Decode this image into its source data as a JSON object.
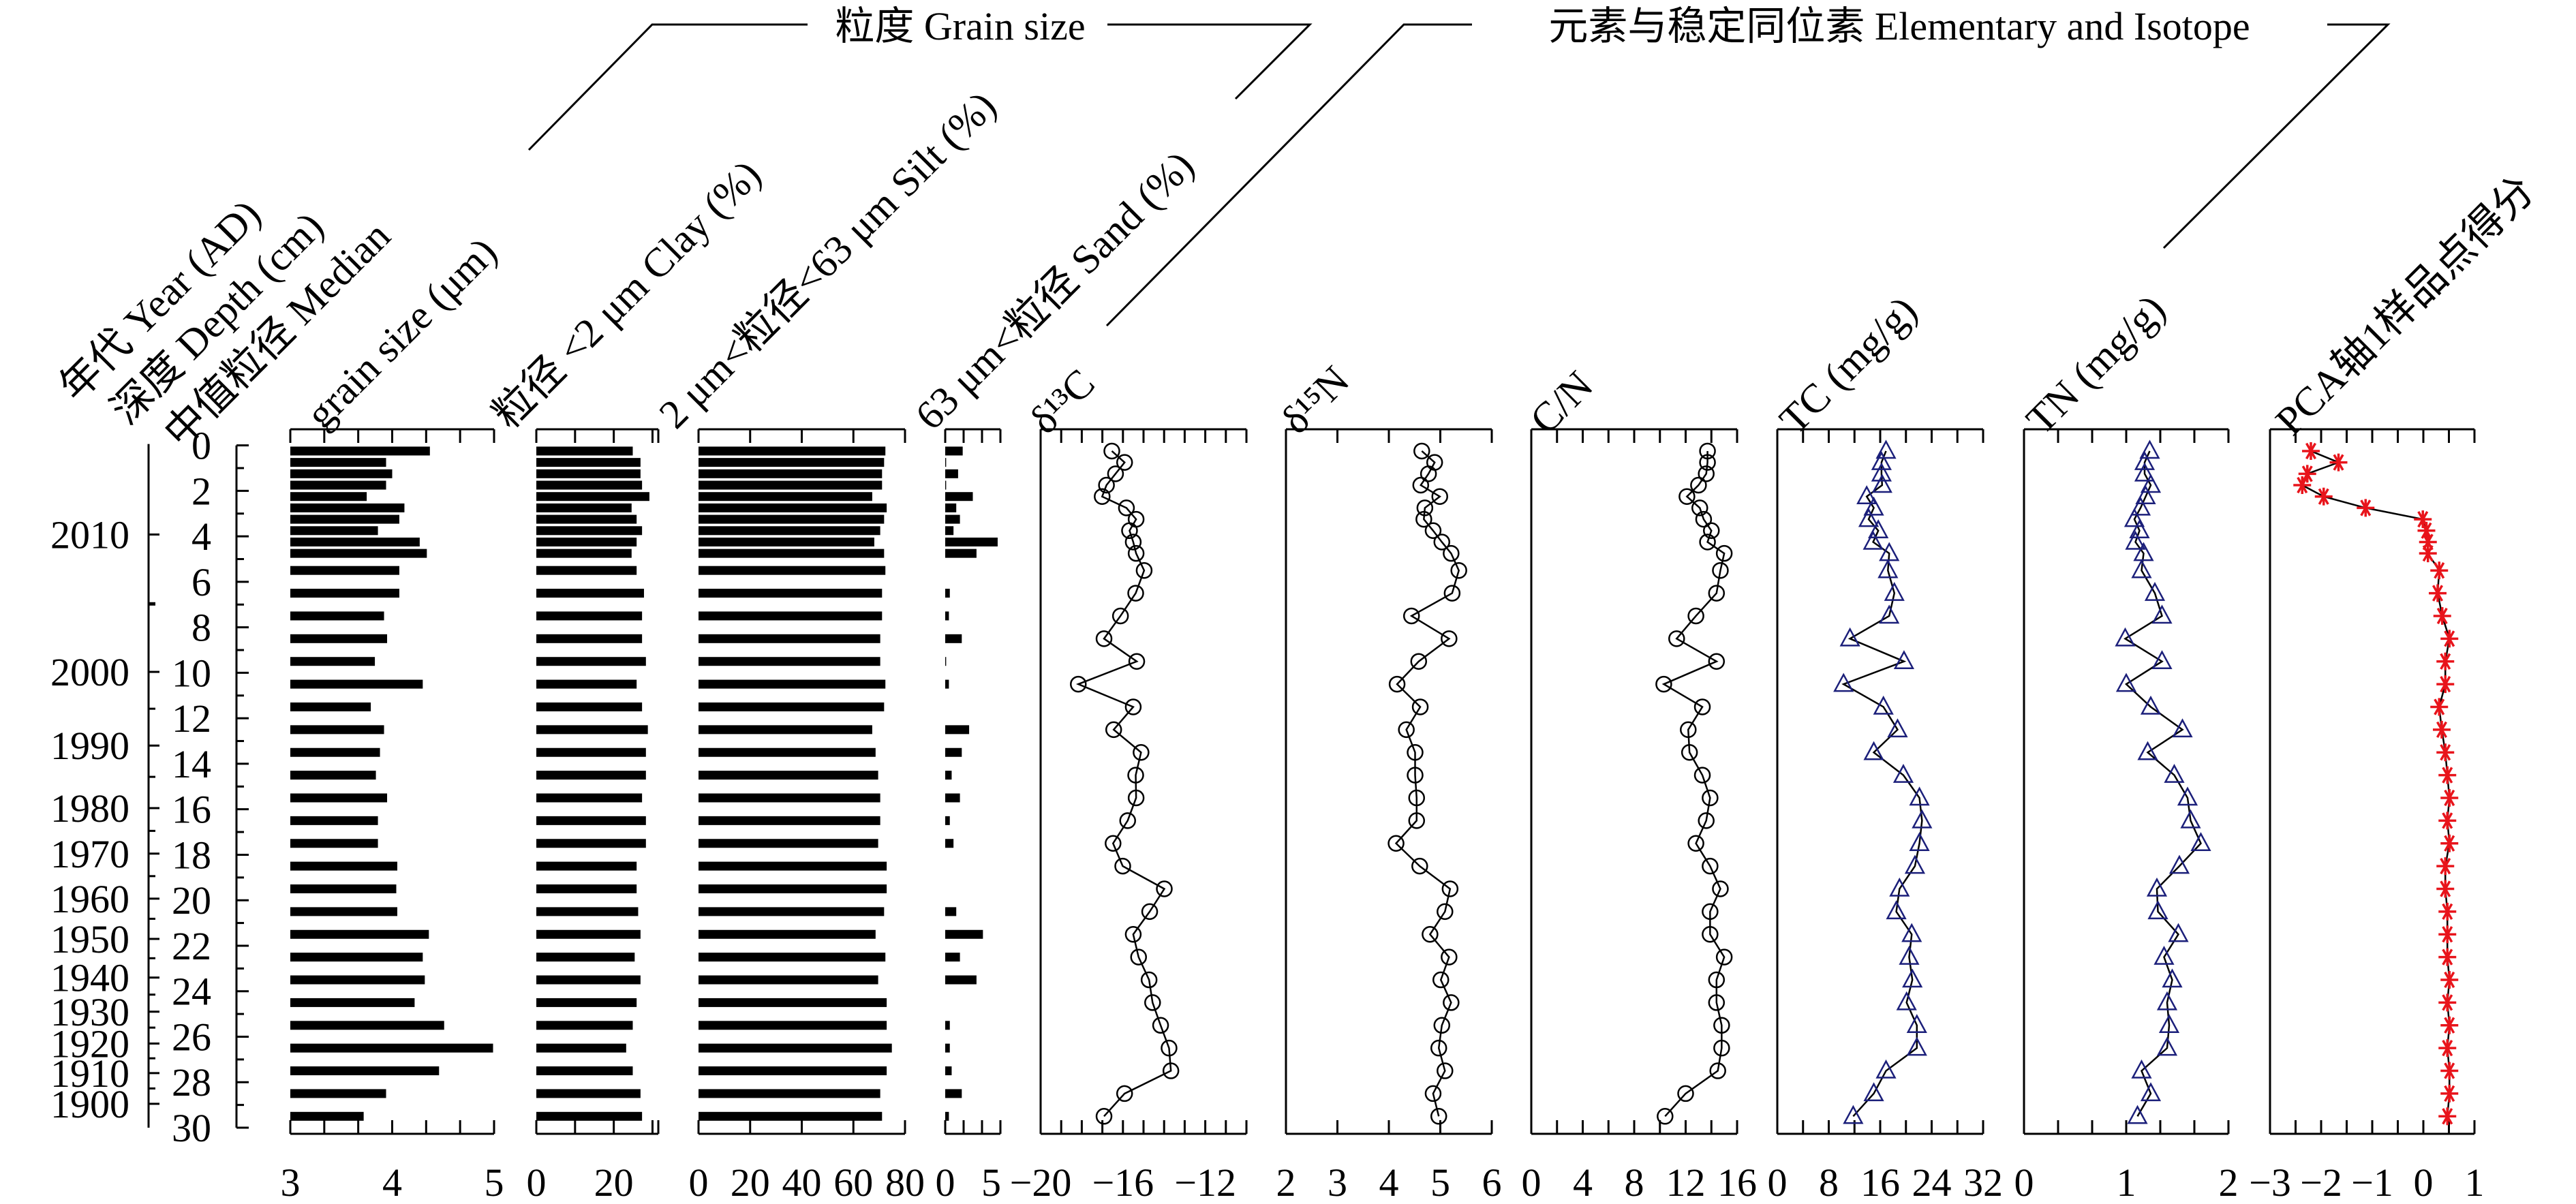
{
  "chart_data": {
    "type": "line",
    "title": "",
    "orientation": "vertical-depth-profile",
    "groups": [
      {
        "id": "grain",
        "label": "粒度 Grain size"
      },
      {
        "id": "elem",
        "label": "元素与稳定同位素 Elementary and Isotope"
      }
    ],
    "year_axis": {
      "label": "年代 Year (AD)",
      "ticks": [
        {
          "year": "2010",
          "depth": 3.92
        },
        {
          "year": "2000",
          "depth": 9.96
        },
        {
          "year": "1990",
          "depth": 13.2
        },
        {
          "year": "1980",
          "depth": 15.95
        },
        {
          "year": "1970",
          "depth": 17.95
        },
        {
          "year": "1960",
          "depth": 19.93
        },
        {
          "year": "1950",
          "depth": 21.7
        },
        {
          "year": "1940",
          "depth": 23.4
        },
        {
          "year": "1930",
          "depth": 24.9
        },
        {
          "year": "1920",
          "depth": 26.3
        },
        {
          "year": "1910",
          "depth": 27.6
        },
        {
          "year": "1900",
          "depth": 28.95
        }
      ]
    },
    "depth_axis": {
      "label": "深度 Depth (cm)",
      "ylim": [
        0,
        30
      ],
      "ticks": [
        "0",
        "2",
        "4",
        "6",
        "8",
        "10",
        "12",
        "14",
        "16",
        "18",
        "20",
        "22",
        "24",
        "26",
        "28",
        "30"
      ]
    },
    "depth_cm": [
      0.25,
      0.75,
      1.25,
      1.75,
      2.25,
      2.75,
      3.25,
      3.75,
      4.25,
      4.75,
      5.5,
      6.5,
      7.5,
      8.5,
      9.5,
      10.5,
      11.5,
      12.5,
      13.5,
      14.5,
      15.5,
      16.5,
      17.5,
      18.5,
      19.5,
      20.5,
      21.5,
      22.5,
      23.5,
      24.5,
      25.5,
      26.5,
      27.5,
      28.5,
      29.5
    ],
    "panels": [
      {
        "id": "median",
        "group": "grain",
        "type": "bar",
        "label": [
          "中值粒径 Median",
          "grain size (μm)"
        ],
        "xlim": [
          3,
          5
        ],
        "minor_step": 0.3333,
        "ticks": [
          {
            "v": 3,
            "t": "3"
          },
          {
            "v": 4,
            "t": "4"
          },
          {
            "v": 5,
            "t": "5"
          }
        ],
        "values": [
          4.37,
          3.94,
          4.0,
          3.94,
          3.75,
          4.12,
          4.07,
          3.86,
          4.27,
          4.34,
          4.07,
          4.07,
          3.92,
          3.95,
          3.83,
          4.3,
          3.79,
          3.92,
          3.88,
          3.84,
          3.95,
          3.86,
          3.86,
          4.05,
          4.04,
          4.05,
          4.36,
          4.3,
          4.32,
          4.22,
          4.51,
          4.99,
          4.46,
          3.94,
          3.72
        ]
      },
      {
        "id": "clay",
        "group": "grain",
        "type": "bar",
        "label": [
          "粒径 <2 μm Clay (%)"
        ],
        "xlim": [
          0,
          31.5
        ],
        "minor_step": 10,
        "ticks": [
          {
            "v": 0,
            "t": "0"
          },
          {
            "v": 20,
            "t": "20"
          }
        ],
        "values": [
          24.9,
          26.9,
          26.9,
          27.3,
          29.2,
          24.6,
          25.9,
          27.3,
          25.9,
          24.6,
          25.9,
          27.8,
          27.3,
          27.3,
          28.3,
          25.9,
          27.3,
          28.8,
          28.3,
          28.3,
          27.3,
          28.3,
          28.3,
          25.9,
          25.9,
          26.3,
          26.9,
          25.4,
          26.9,
          25.9,
          24.9,
          23.2,
          24.9,
          26.9,
          27.3
        ]
      },
      {
        "id": "silt",
        "group": "grain",
        "type": "bar",
        "label": [
          "2 μm<粒径<63 μm Silt (%)"
        ],
        "xlim": [
          0,
          80
        ],
        "minor_step": 20,
        "ticks": [
          {
            "v": 0,
            "t": "0"
          },
          {
            "v": 20,
            "t": "20"
          },
          {
            "v": 40,
            "t": "40"
          },
          {
            "v": 60,
            "t": "60"
          },
          {
            "v": 80,
            "t": "80"
          }
        ],
        "values": [
          72.4,
          71.9,
          71.1,
          71.1,
          67.3,
          72.9,
          71.9,
          70.4,
          68.1,
          71.9,
          72.4,
          71.1,
          71.1,
          70.4,
          70.4,
          72.4,
          71.9,
          67.3,
          68.6,
          69.6,
          70.4,
          70.4,
          69.6,
          72.9,
          72.9,
          71.9,
          68.6,
          72.4,
          69.6,
          72.9,
          72.9,
          74.9,
          72.9,
          70.4,
          71.1
        ]
      },
      {
        "id": "sand",
        "group": "grain",
        "type": "bar",
        "label": [
          "63 μm<粒径 Sand (%)"
        ],
        "xlim": [
          0,
          6
        ],
        "minor_step": 2,
        "ticks": [
          {
            "v": 0,
            "t": "0"
          },
          {
            "v": 5,
            "t": "5"
          }
        ],
        "values": [
          1.9,
          0.1,
          1.4,
          0.1,
          3.0,
          1.2,
          1.6,
          0.9,
          5.7,
          3.4,
          0,
          0.5,
          0.4,
          1.8,
          0.1,
          0.4,
          0,
          2.6,
          1.8,
          0.7,
          1.6,
          0.5,
          0.9,
          0,
          0,
          1.2,
          4.1,
          1.6,
          3.4,
          0,
          0.5,
          0.5,
          0.7,
          1.8,
          0.4
        ]
      },
      {
        "id": "d13c",
        "group": "elem",
        "type": "line",
        "marker": "circle",
        "color": "#000000",
        "label": [
          "δ¹³C"
        ],
        "xlim": [
          -20,
          -10
        ],
        "minor_step": 1,
        "ticks": [
          {
            "v": -20,
            "t": "−20"
          },
          {
            "v": -16,
            "t": "−16"
          },
          {
            "v": -12,
            "t": "−12"
          }
        ],
        "values": [
          -16.54,
          -15.92,
          -16.36,
          -16.8,
          -17.01,
          -15.83,
          -15.36,
          -15.68,
          -15.5,
          -15.36,
          -14.97,
          -15.38,
          -16.12,
          -16.92,
          -15.33,
          -18.17,
          -15.5,
          -16.45,
          -15.12,
          -15.38,
          -15.36,
          -15.77,
          -16.48,
          -16.01,
          -13.99,
          -14.7,
          -15.5,
          -15.24,
          -14.73,
          -14.56,
          -14.17,
          -13.76,
          -13.67,
          -15.92,
          -16.92
        ]
      },
      {
        "id": "d15n",
        "group": "elem",
        "type": "line",
        "marker": "circle",
        "color": "#000000",
        "label": [
          "δ¹⁵N"
        ],
        "xlim": [
          2,
          6
        ],
        "minor_step": 1,
        "ticks": [
          {
            "v": 2,
            "t": "2"
          },
          {
            "v": 3,
            "t": "3"
          },
          {
            "v": 4,
            "t": "4"
          },
          {
            "v": 5,
            "t": "5"
          },
          {
            "v": 6,
            "t": "6"
          }
        ],
        "values": [
          4.64,
          4.89,
          4.77,
          4.62,
          4.99,
          4.7,
          4.68,
          4.86,
          5.03,
          5.21,
          5.36,
          5.23,
          4.44,
          5.17,
          4.58,
          4.16,
          4.61,
          4.34,
          4.51,
          4.51,
          4.54,
          4.54,
          4.14,
          4.6,
          5.19,
          5.09,
          4.8,
          5.17,
          5.01,
          5.21,
          5.03,
          4.97,
          5.09,
          4.86,
          4.97
        ]
      },
      {
        "id": "cn",
        "group": "elem",
        "type": "line",
        "marker": "circle",
        "color": "#000000",
        "label": [
          "C/N"
        ],
        "xlim": [
          0,
          16
        ],
        "minor_step": 2,
        "ticks": [
          {
            "v": 0,
            "t": "0"
          },
          {
            "v": 4,
            "t": "4"
          },
          {
            "v": 8,
            "t": "8"
          },
          {
            "v": 12,
            "t": "12"
          },
          {
            "v": 16,
            "t": "16"
          }
        ],
        "values": [
          13.7,
          13.7,
          13.6,
          13.0,
          12.1,
          13.1,
          13.4,
          14.0,
          13.7,
          15.0,
          14.7,
          14.4,
          12.8,
          11.3,
          14.4,
          10.3,
          13.3,
          12.2,
          12.3,
          13.3,
          13.9,
          13.6,
          12.8,
          13.9,
          14.7,
          13.9,
          13.9,
          15.0,
          14.4,
          14.4,
          14.8,
          14.8,
          14.5,
          12.0,
          10.4
        ]
      },
      {
        "id": "tc",
        "group": "elem",
        "type": "line",
        "marker": "triangle",
        "color": "#1b1f7a",
        "label": [
          "TC (mg/g)"
        ],
        "xlim": [
          0,
          32
        ],
        "minor_step": 4,
        "ticks": [
          {
            "v": 0,
            "t": "0"
          },
          {
            "v": 8,
            "t": "8"
          },
          {
            "v": 16,
            "t": "16"
          },
          {
            "v": 24,
            "t": "24"
          },
          {
            "v": 32,
            "t": "32"
          }
        ],
        "values": [
          16.9,
          16.2,
          16.2,
          16.3,
          13.9,
          15.0,
          14.2,
          15.7,
          14.9,
          17.4,
          17.2,
          18.2,
          17.4,
          11.3,
          19.7,
          10.3,
          16.5,
          18.7,
          15.0,
          19.6,
          22.1,
          22.5,
          22.1,
          21.4,
          19.0,
          18.5,
          20.9,
          20.5,
          21.0,
          20.1,
          21.7,
          21.7,
          16.9,
          15.0,
          11.8
        ]
      },
      {
        "id": "tn",
        "group": "elem",
        "type": "line",
        "marker": "triangle",
        "color": "#1b1f7a",
        "label": [
          "TN (mg/g)"
        ],
        "xlim": [
          0,
          2
        ],
        "minor_step": 0.3333,
        "ticks": [
          {
            "v": 0,
            "t": "0"
          },
          {
            "v": 1,
            "t": "1"
          },
          {
            "v": 2,
            "t": "2"
          }
        ],
        "values": [
          1.23,
          1.18,
          1.18,
          1.24,
          1.19,
          1.14,
          1.08,
          1.13,
          1.09,
          1.17,
          1.15,
          1.28,
          1.35,
          0.99,
          1.35,
          1.0,
          1.24,
          1.55,
          1.21,
          1.47,
          1.6,
          1.63,
          1.73,
          1.52,
          1.3,
          1.31,
          1.51,
          1.37,
          1.45,
          1.4,
          1.42,
          1.4,
          1.15,
          1.24,
          1.11
        ]
      },
      {
        "id": "pca",
        "group": "elem",
        "type": "line",
        "marker": "star",
        "color": "#e8141b",
        "label": [
          "PCA轴1样品点得分"
        ],
        "xlim": [
          -3,
          1
        ],
        "minor_step": 0.5,
        "ticks": [
          {
            "v": -3,
            "t": "−3"
          },
          {
            "v": -2,
            "t": "−2"
          },
          {
            "v": -1,
            "t": "−1"
          },
          {
            "v": 0,
            "t": "0"
          },
          {
            "v": 1,
            "t": "1"
          }
        ],
        "values": [
          -2.2,
          -1.66,
          -2.27,
          -2.37,
          -1.95,
          -1.13,
          -0.01,
          0.06,
          0.09,
          0.09,
          0.31,
          0.28,
          0.37,
          0.51,
          0.43,
          0.43,
          0.31,
          0.36,
          0.43,
          0.47,
          0.51,
          0.47,
          0.51,
          0.43,
          0.43,
          0.47,
          0.47,
          0.47,
          0.51,
          0.47,
          0.51,
          0.47,
          0.51,
          0.51,
          0.47
        ]
      }
    ]
  }
}
